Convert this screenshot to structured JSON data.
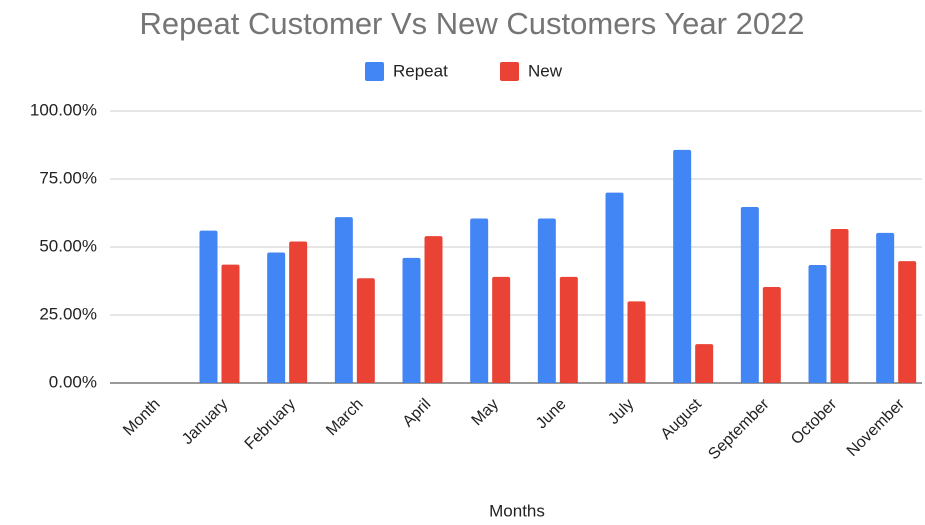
{
  "chart_data": {
    "type": "bar",
    "title": "Repeat Customer Vs New Customers Year 2022",
    "x_label": "Months",
    "categories": [
      "Month",
      "January",
      "February",
      "March",
      "April",
      "May",
      "June",
      "July",
      "August",
      "September",
      "October",
      "November"
    ],
    "series": [
      {
        "name": "Repeat",
        "color": "#4285f4",
        "values": [
          null,
          56,
          48,
          61,
          46,
          60.5,
          60.5,
          70,
          85.7,
          64.7,
          43.4,
          55.2
        ]
      },
      {
        "name": "New",
        "color": "#ea4335",
        "values": [
          null,
          43.5,
          52,
          38.5,
          54,
          39,
          39,
          30,
          14.3,
          35.3,
          56.6,
          44.8
        ]
      }
    ],
    "ylim": [
      0,
      100
    ],
    "yticks": [
      {
        "value": 0,
        "label": "0.00%"
      },
      {
        "value": 25,
        "label": "25.00%"
      },
      {
        "value": 50,
        "label": "50.00%"
      },
      {
        "value": 75,
        "label": "75.00%"
      },
      {
        "value": 100,
        "label": "100.00%"
      }
    ],
    "grid": true,
    "legend": "top"
  }
}
